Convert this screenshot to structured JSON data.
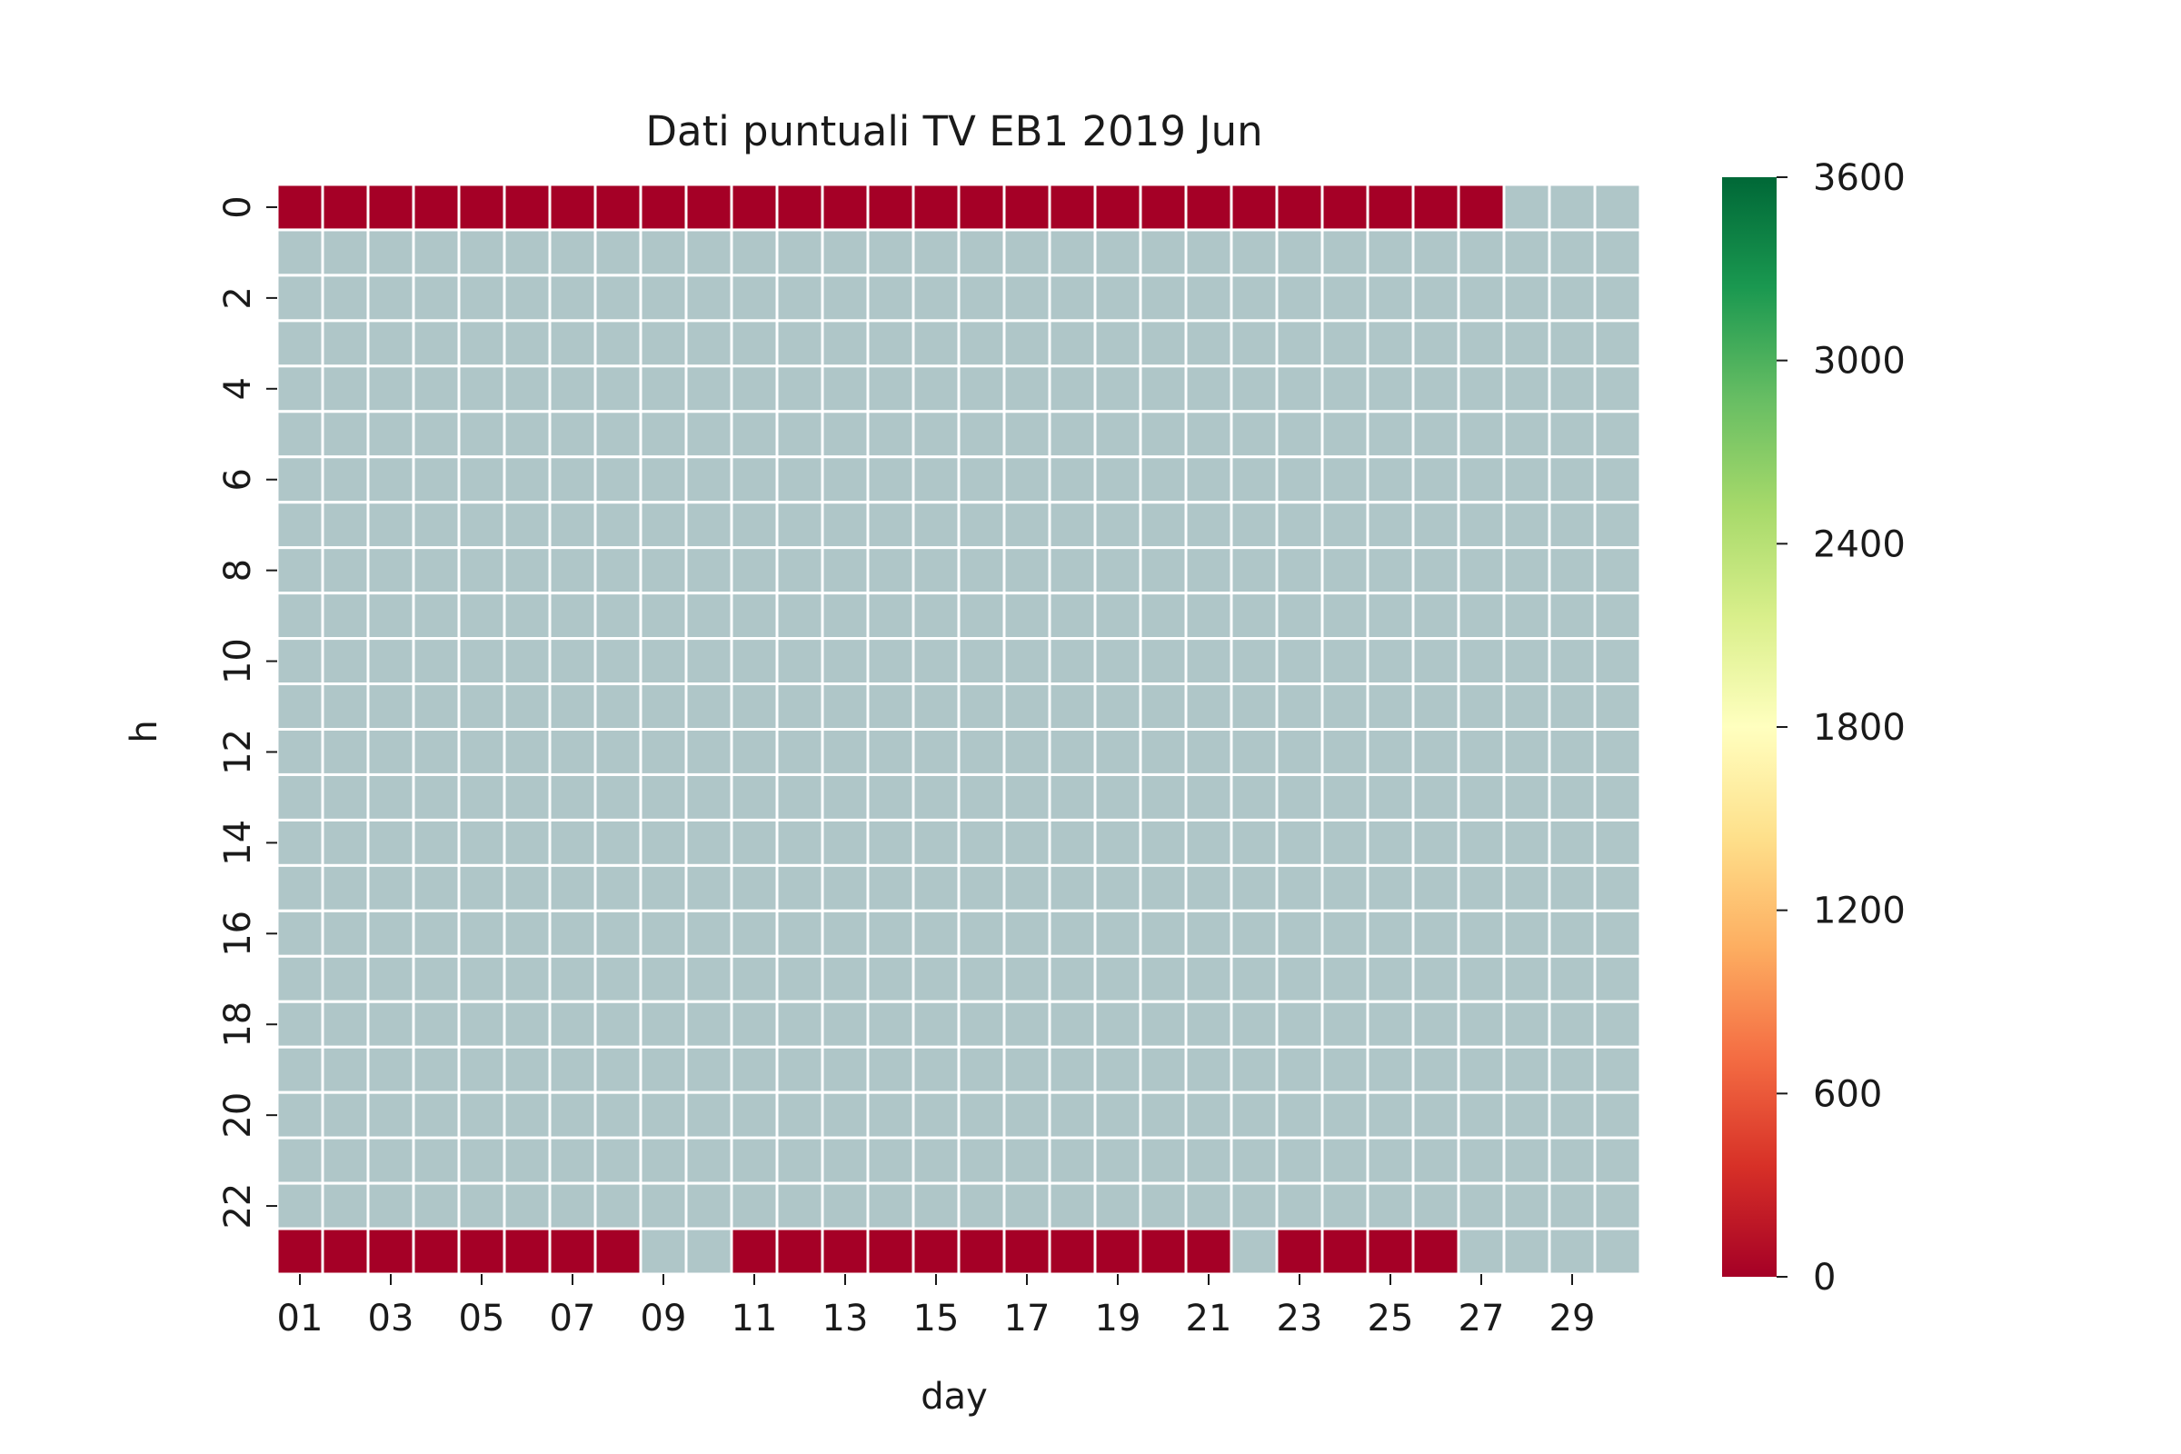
{
  "chart_data": {
    "type": "heatmap",
    "title": "Dati puntuali TV EB1 2019 Jun",
    "xlabel": "day",
    "ylabel": "h",
    "x_categories": [
      "01",
      "02",
      "03",
      "04",
      "05",
      "06",
      "07",
      "08",
      "09",
      "10",
      "11",
      "12",
      "13",
      "14",
      "15",
      "16",
      "17",
      "18",
      "19",
      "20",
      "21",
      "22",
      "23",
      "24",
      "25",
      "26",
      "27",
      "28",
      "29",
      "30"
    ],
    "x_tick_labels": [
      "01",
      "03",
      "05",
      "07",
      "09",
      "11",
      "13",
      "15",
      "17",
      "19",
      "21",
      "23",
      "25",
      "27",
      "29"
    ],
    "y_categories": [
      0,
      1,
      2,
      3,
      4,
      5,
      6,
      7,
      8,
      9,
      10,
      11,
      12,
      13,
      14,
      15,
      16,
      17,
      18,
      19,
      20,
      21,
      22,
      23
    ],
    "y_tick_labels": [
      "0",
      "2",
      "4",
      "6",
      "8",
      "10",
      "12",
      "14",
      "16",
      "18",
      "20",
      "22"
    ],
    "colorbar": {
      "range": [
        0,
        3600
      ],
      "ticks": [
        "0",
        "600",
        "1200",
        "1800",
        "2400",
        "3000",
        "3600"
      ],
      "colormap": "RdYlGn",
      "stops": [
        "#a50026",
        "#d73027",
        "#f46d43",
        "#fdae61",
        "#fee08b",
        "#ffffbf",
        "#d9ef8b",
        "#a6d96a",
        "#66bd63",
        "#1a9850",
        "#006837"
      ]
    },
    "missing_color": "#afc6c8",
    "grid_line_color": "#ffffff",
    "rows": [
      {
        "h": 0,
        "values": [
          0,
          0,
          0,
          0,
          0,
          0,
          0,
          0,
          0,
          0,
          0,
          0,
          0,
          0,
          0,
          0,
          0,
          0,
          0,
          0,
          0,
          0,
          0,
          0,
          0,
          0,
          0,
          null,
          null,
          null
        ]
      },
      {
        "h": 23,
        "values": [
          0,
          0,
          0,
          0,
          0,
          0,
          0,
          0,
          null,
          null,
          0,
          0,
          0,
          0,
          0,
          0,
          0,
          0,
          0,
          0,
          0,
          null,
          0,
          0,
          0,
          0,
          null,
          null,
          null,
          null
        ]
      }
    ],
    "note_other_hours": null
  }
}
